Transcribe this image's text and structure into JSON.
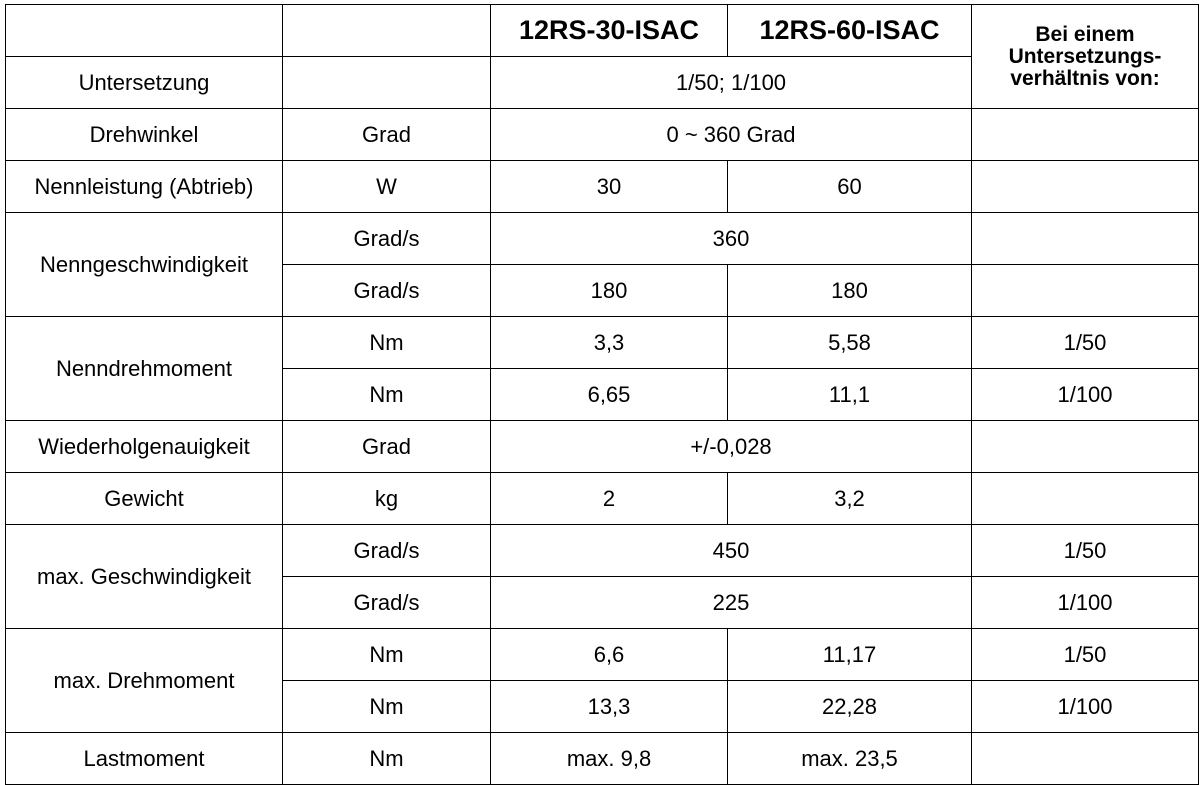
{
  "table": {
    "header": {
      "model_1": "12RS-30-ISAC",
      "model_2": "12RS-60-ISAC",
      "ratio_lines": [
        "Bei einem",
        "Untersetzungs-",
        "verhältnis von:"
      ]
    },
    "rows": [
      {
        "label": "Untersetzung",
        "value": "1/50; 1/100"
      },
      {
        "label": "Drehwinkel",
        "unit": "Grad",
        "value": "0 ~ 360 Grad"
      },
      {
        "label": "Nennleistung (Abtrieb)",
        "unit": "W",
        "values": [
          "30",
          "60"
        ]
      },
      {
        "label": "Nenngeschwindigkeit",
        "lines": [
          {
            "unit": "Grad/s",
            "value": "360"
          },
          {
            "unit": "Grad/s",
            "values": [
              "180",
              "180"
            ]
          }
        ]
      },
      {
        "label": "Nenndrehmoment",
        "lines": [
          {
            "unit": "Nm",
            "values": [
              "3,3",
              "5,58"
            ],
            "ratio": "1/50"
          },
          {
            "unit": "Nm",
            "values": [
              "6,65",
              "11,1"
            ],
            "ratio": "1/100"
          }
        ]
      },
      {
        "label": "Wiederholgenauigkeit",
        "unit": "Grad",
        "value": "+/-0,028"
      },
      {
        "label": "Gewicht",
        "unit": "kg",
        "values": [
          "2",
          "3,2"
        ]
      },
      {
        "label": "max. Geschwindigkeit",
        "lines": [
          {
            "unit": "Grad/s",
            "value": "450",
            "ratio": "1/50"
          },
          {
            "unit": "Grad/s",
            "value": "225",
            "ratio": "1/100"
          }
        ]
      },
      {
        "label": "max. Drehmoment",
        "lines": [
          {
            "unit": "Nm",
            "values": [
              "6,6",
              "11,17"
            ],
            "ratio": "1/50"
          },
          {
            "unit": "Nm",
            "values": [
              "13,3",
              "22,28"
            ],
            "ratio": "1/100"
          }
        ]
      },
      {
        "label": "Lastmoment",
        "unit": "Nm",
        "values": [
          "max. 9,8",
          "max. 23,5"
        ]
      }
    ]
  }
}
